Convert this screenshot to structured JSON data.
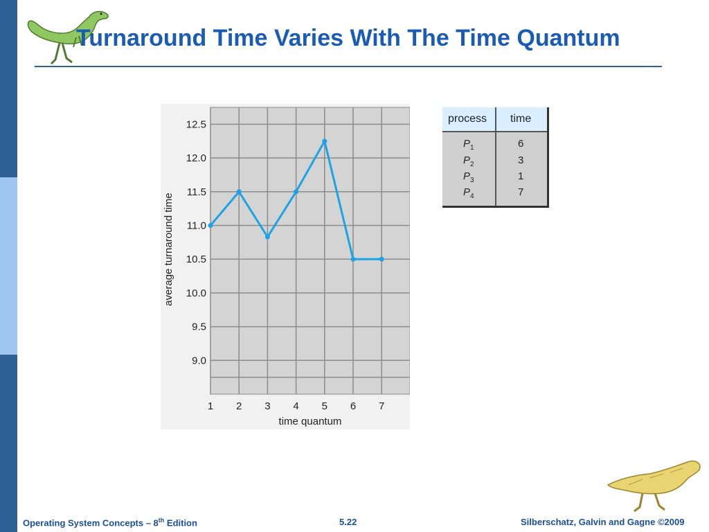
{
  "slide": {
    "title": "Turnaround Time Varies With The Time Quantum"
  },
  "chart_data": {
    "type": "line",
    "x": [
      1,
      2,
      3,
      4,
      5,
      6,
      7
    ],
    "values": [
      11.0,
      11.5,
      10.83,
      11.5,
      12.25,
      10.5,
      10.5
    ],
    "xlabel": "time quantum",
    "ylabel": "average turnaround time",
    "x_ticks": [
      "1",
      "2",
      "3",
      "4",
      "5",
      "6",
      "7"
    ],
    "y_ticks": [
      "9.0",
      "9.5",
      "10.0",
      "10.5",
      "11.0",
      "11.5",
      "12.0",
      "12.5"
    ],
    "ylim": [
      8.5,
      12.75
    ],
    "grid": true,
    "line_color": "#1ba3e6",
    "plot_background": "#d4d4d4"
  },
  "table": {
    "headers": [
      "process",
      "time"
    ],
    "rows": [
      {
        "process": "P",
        "sub": "1",
        "time": "6"
      },
      {
        "process": "P",
        "sub": "2",
        "time": "3"
      },
      {
        "process": "P",
        "sub": "3",
        "time": "1"
      },
      {
        "process": "P",
        "sub": "4",
        "time": "7"
      }
    ]
  },
  "footer": {
    "left_text": "Operating System Concepts – 8",
    "left_sup": "th",
    "left_suffix": " Edition",
    "center": "5.22",
    "right": "Silberschatz, Galvin and Gagne ©2009"
  },
  "colors": {
    "title": "#1a5bb5",
    "rule": "#2f6195",
    "footer_text": "#1a4f96"
  }
}
